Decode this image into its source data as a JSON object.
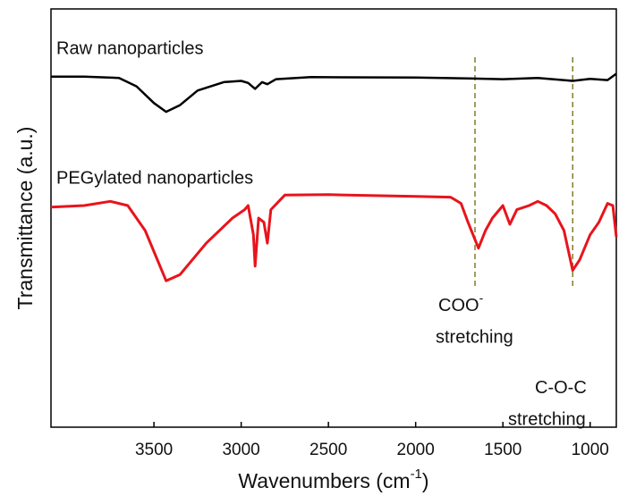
{
  "chart_data": {
    "type": "line",
    "xlabel": {
      "text": "Wavenumbers (cm",
      "sup": "-1",
      "tail": ")"
    },
    "ylabel": "Transmittance (a.u.)",
    "xlim": [
      4090,
      850
    ],
    "ylim": [
      0,
      100
    ],
    "xticks": [
      3500,
      3000,
      2500,
      2000,
      1500,
      1000
    ],
    "series": [
      {
        "name": "Raw nanoparticles",
        "color": "#000000",
        "x": [
          4090,
          3900,
          3700,
          3600,
          3500,
          3430,
          3350,
          3250,
          3100,
          3000,
          2960,
          2920,
          2880,
          2850,
          2800,
          2600,
          2000,
          1700,
          1500,
          1300,
          1100,
          1000,
          900,
          850
        ],
        "values": [
          83.8,
          83.8,
          83.5,
          81.5,
          77.5,
          75.4,
          77,
          80.5,
          82.5,
          82.8,
          82.3,
          80.9,
          82.5,
          82,
          83.2,
          83.7,
          83.6,
          83.4,
          83.2,
          83.5,
          82.8,
          83.3,
          83,
          84.5
        ]
      },
      {
        "name": "PEGylated nanoparticles",
        "color": "#e8141c",
        "x": [
          4090,
          3900,
          3750,
          3650,
          3550,
          3450,
          3430,
          3350,
          3200,
          3050,
          2980,
          2960,
          2930,
          2920,
          2900,
          2870,
          2850,
          2830,
          2750,
          2500,
          2000,
          1800,
          1740,
          1700,
          1640,
          1600,
          1560,
          1500,
          1460,
          1420,
          1350,
          1300,
          1250,
          1200,
          1150,
          1100,
          1060,
          1000,
          950,
          900,
          870,
          850
        ],
        "values": [
          52.6,
          53,
          54,
          53,
          47,
          37,
          35,
          36.5,
          44,
          50,
          52,
          53,
          46,
          38.5,
          50,
          49,
          44,
          52,
          55.5,
          55.6,
          55.2,
          55,
          53.5,
          49,
          42.8,
          47,
          50,
          53,
          48.5,
          52,
          53,
          54,
          53,
          51,
          47,
          37.5,
          40,
          46,
          49,
          53.5,
          53,
          45.5
        ]
      }
    ],
    "annotations": [
      {
        "x": 1660,
        "text": "COO",
        "sup": "-",
        "line2": "stretching",
        "color": "#7f7f2a"
      },
      {
        "x": 1100,
        "text": "C-O-C",
        "line2": "stretching",
        "color": "#7f7f2a"
      }
    ]
  }
}
